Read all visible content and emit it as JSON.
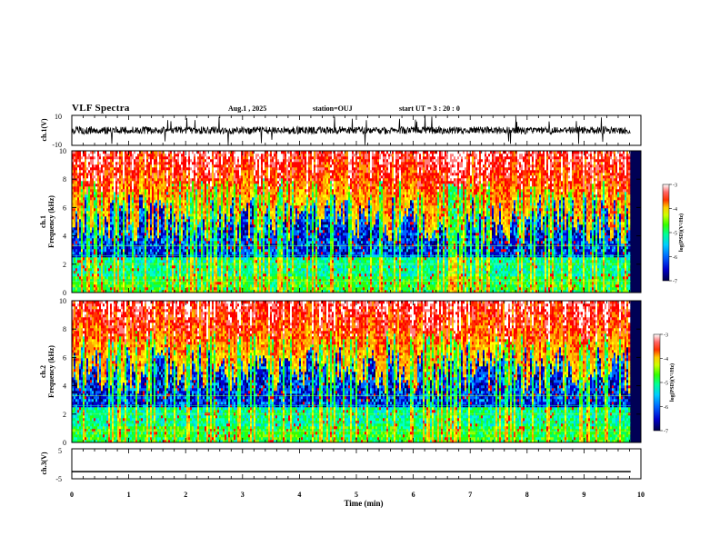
{
  "header": {
    "title": "VLF Spectra",
    "date": "Aug.1 , 2025",
    "station": "station=OUJ",
    "start": "start UT = 3 : 20 : 0"
  },
  "colors": {
    "spectrum": [
      "#000066",
      "#0000cc",
      "#0066ff",
      "#00ccff",
      "#00ffcc",
      "#00ff66",
      "#33ff00",
      "#99ff00",
      "#ffff00",
      "#ffcc00",
      "#ff9900",
      "#ff3300",
      "#ff0000",
      "#ff8080",
      "#ffffff"
    ]
  },
  "chart_data": [
    {
      "type": "line",
      "name": "ch.1 waveform",
      "ylabel": "ch.1(V)",
      "ylim": [
        -10,
        10
      ],
      "yticks": [
        "10",
        "-10"
      ],
      "x_range_min": [
        0,
        9.82
      ],
      "baseline_v": 0,
      "noise_amplitude_v": 2.5,
      "spike_amplitude_v": 10
    },
    {
      "type": "heatmap",
      "name": "ch.1 spectrogram",
      "ylabel_line1": "ch.1",
      "ylabel_line2": "Frequency (kHz)",
      "ylim": [
        0,
        10
      ],
      "yticks": [
        "0",
        "2",
        "4",
        "6",
        "8",
        "10"
      ],
      "colorbar_label": "log(PSD)(V²/Hz)",
      "colorbar_range": [
        -7,
        -3
      ],
      "colorbar_ticks": [
        "-3",
        "-4",
        "-5",
        "-6",
        "-7"
      ],
      "seed": 11
    },
    {
      "type": "heatmap",
      "name": "ch.2 spectrogram",
      "ylabel_line1": "ch.2",
      "ylabel_line2": "Frequency (kHz)",
      "ylim": [
        0,
        10
      ],
      "yticks": [
        "0",
        "2",
        "4",
        "6",
        "8",
        "10"
      ],
      "colorbar_label": "log(PSD)(V²/Hz)",
      "colorbar_range": [
        -7,
        -3
      ],
      "colorbar_ticks": [
        "-3",
        "-4",
        "-5",
        "-6",
        "-7"
      ],
      "seed": 23
    },
    {
      "type": "line",
      "name": "ch.3 waveform",
      "ylabel": "ch.3(V)",
      "ylim": [
        -5,
        5
      ],
      "yticks": [
        "5",
        "-5"
      ],
      "x_range_min": [
        0,
        9.82
      ],
      "constant_v": -2.6
    }
  ],
  "xaxis": {
    "label": "Time (min)",
    "range": [
      0,
      10
    ],
    "ticks": [
      "0",
      "1",
      "2",
      "3",
      "4",
      "5",
      "6",
      "7",
      "8",
      "9",
      "10"
    ]
  }
}
